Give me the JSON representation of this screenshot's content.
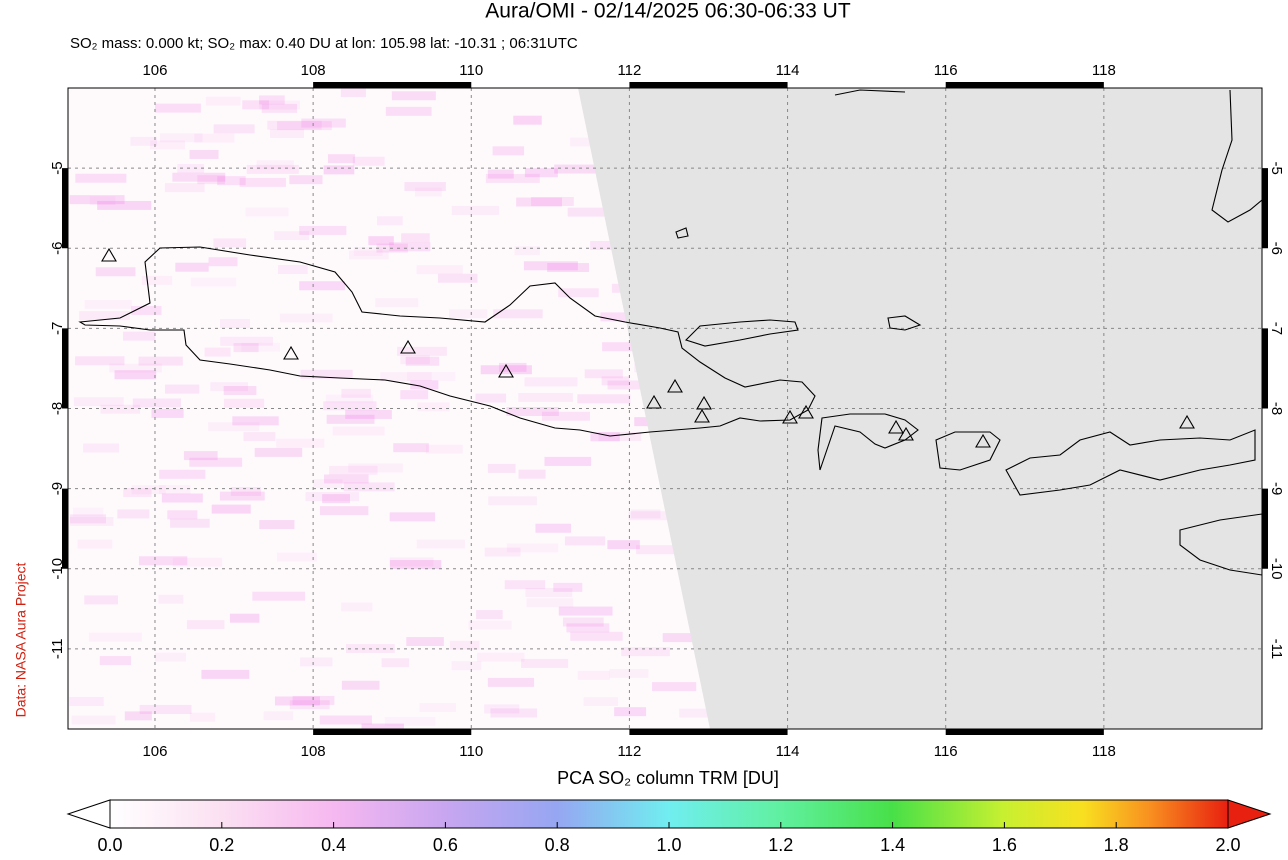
{
  "chart_data": {
    "type": "map",
    "title": "Aura/OMI - 02/14/2025 06:30-06:33 UT",
    "subtitle": "SO₂ mass: 0.000 kt; SO₂ max: 0.40 DU at lon: 105.98 lat: -10.31 ; 06:31UTC",
    "credit": "Data: NASA Aura Project",
    "xlim": [
      104.9,
      120.0
    ],
    "ylim": [
      -12.0,
      -4.0
    ],
    "xticks": [
      106,
      108,
      110,
      112,
      114,
      116,
      118
    ],
    "yticks": [
      -5,
      -6,
      -7,
      -8,
      -9,
      -10,
      -11
    ],
    "grid": true,
    "colorbar": {
      "label": "PCA SO₂ column TRM [DU]",
      "lim": [
        0,
        2
      ],
      "ticks": [
        {
          "value": 0,
          "label": "0.0"
        },
        {
          "value": 0.2,
          "label": "0.2"
        },
        {
          "value": 0.4,
          "label": "0.4"
        },
        {
          "value": 0.6,
          "label": "0.6"
        },
        {
          "value": 0.8,
          "label": "0.8"
        },
        {
          "value": 1,
          "label": "1.0"
        },
        {
          "value": 1.2,
          "label": "1.2"
        },
        {
          "value": 1.4,
          "label": "1.4"
        },
        {
          "value": 1.6,
          "label": "1.6"
        },
        {
          "value": 1.8,
          "label": "1.8"
        },
        {
          "value": 2,
          "label": "2.0"
        }
      ]
    }
  }
}
